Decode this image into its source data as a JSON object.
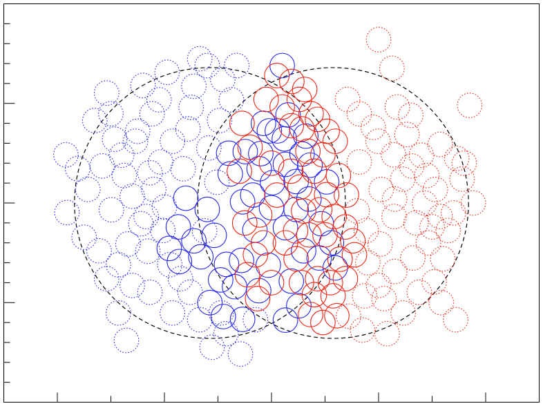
{
  "chart_data": {
    "type": "scatter",
    "title": "",
    "xlabel": "",
    "ylabel": "",
    "xlim": [
      0,
      100
    ],
    "ylim": [
      0,
      100
    ],
    "grid": false,
    "legend": "none",
    "marker": "open-circle",
    "marker_radius": 2.3,
    "x_ticks_major": [
      10,
      30,
      50,
      70,
      90
    ],
    "x_ticks_minor": [
      0,
      20,
      40,
      60,
      80,
      100
    ],
    "y_ticks_major": [
      25,
      50,
      75
    ],
    "y_ticks_minor": [
      0,
      5,
      10,
      15,
      20,
      30,
      35,
      40,
      45,
      55,
      60,
      65,
      70,
      80,
      85,
      90,
      95
    ],
    "regions": [
      {
        "shape": "circle",
        "cx": 38.5,
        "cy": 50,
        "r": 25.3,
        "color": "#000000",
        "style": "dashed"
      },
      {
        "shape": "circle",
        "cx": 61.5,
        "cy": 50,
        "r": 25.3,
        "color": "#000000",
        "style": "dashed"
      }
    ],
    "series": [
      {
        "color": "#2222ee",
        "style": "dotted",
        "points": [
          [
            11.6,
            62.1
          ],
          [
            13.8,
            58.6
          ],
          [
            11.8,
            47.6
          ],
          [
            15.7,
            53.4
          ],
          [
            18.4,
            59.3
          ],
          [
            20.7,
            66.0
          ],
          [
            19.2,
            77.6
          ],
          [
            17.0,
            70.7
          ],
          [
            20.1,
            48.3
          ],
          [
            22.5,
            56.9
          ],
          [
            24.0,
            51.7
          ],
          [
            25.6,
            44.8
          ],
          [
            23.2,
            39.7
          ],
          [
            21.4,
            34.5
          ],
          [
            19.2,
            31.0
          ],
          [
            24.6,
            65.5
          ],
          [
            27.7,
            72.4
          ],
          [
            29.3,
            60.3
          ],
          [
            28.0,
            53.4
          ],
          [
            26.6,
            46.6
          ],
          [
            26.9,
            37.9
          ],
          [
            24.0,
            29.3
          ],
          [
            21.4,
            22.4
          ],
          [
            22.9,
            15.5
          ],
          [
            27.3,
            27.6
          ],
          [
            29.0,
            75.9
          ],
          [
            30.5,
            82.8
          ],
          [
            31.5,
            65.5
          ],
          [
            34.4,
            68.6
          ],
          [
            35.5,
            79.3
          ],
          [
            38.0,
            84.5
          ],
          [
            36.6,
            86.2
          ],
          [
            40.9,
            81.0
          ],
          [
            43.5,
            84.5
          ],
          [
            42.5,
            75.9
          ],
          [
            40.3,
            70.7
          ],
          [
            38.3,
            63.8
          ],
          [
            39.8,
            55.2
          ],
          [
            34.8,
            27.6
          ],
          [
            31.5,
            22.4
          ],
          [
            33.0,
            31.0
          ],
          [
            36.6,
            20.7
          ],
          [
            38.9,
            13.8
          ],
          [
            40.6,
            22.4
          ],
          [
            44.2,
            12.1
          ],
          [
            47.0,
            20.7
          ],
          [
            41.5,
            17.2
          ],
          [
            29.7,
            43.1
          ],
          [
            27.3,
            57.6
          ],
          [
            20.0,
            72.4
          ],
          [
            15.0,
            41.4
          ],
          [
            17.8,
            38.0
          ],
          [
            31.0,
            34.5
          ],
          [
            33.5,
            58.6
          ],
          [
            30.0,
            49.0
          ],
          [
            25.0,
            68.0
          ],
          [
            35.0,
            74.0
          ],
          [
            37.5,
            43.0
          ],
          [
            22.0,
            62.0
          ],
          [
            26.0,
            79.5
          ]
        ]
      },
      {
        "color": "#2222ee",
        "style": "solid",
        "points": [
          [
            34.0,
            51.2
          ],
          [
            32.6,
            44.0
          ],
          [
            30.9,
            38.6
          ],
          [
            32.8,
            35.3
          ],
          [
            35.5,
            40.5
          ],
          [
            38.0,
            48.4
          ],
          [
            39.3,
            41.9
          ],
          [
            41.6,
            34.6
          ],
          [
            44.4,
            35.6
          ],
          [
            40.5,
            30.7
          ],
          [
            43.1,
            29.0
          ],
          [
            41.0,
            21.5
          ],
          [
            44.6,
            20.8
          ],
          [
            47.6,
            28.0
          ],
          [
            49.4,
            34.4
          ],
          [
            46.9,
            43.2
          ],
          [
            44.6,
            50.3
          ],
          [
            42.3,
            57.3
          ],
          [
            45.1,
            62.9
          ],
          [
            47.7,
            58.6
          ],
          [
            50.2,
            55.1
          ],
          [
            52.6,
            59.7
          ],
          [
            54.6,
            55.4
          ],
          [
            55.7,
            62.3
          ],
          [
            52.4,
            66.1
          ],
          [
            49.6,
            68.1
          ],
          [
            48.0,
            62.4
          ],
          [
            50.0,
            48.8
          ],
          [
            52.6,
            43.8
          ],
          [
            54.6,
            48.4
          ],
          [
            57.0,
            51.0
          ],
          [
            59.3,
            44.8
          ],
          [
            61.2,
            40.0
          ],
          [
            60.3,
            55.3
          ],
          [
            57.2,
            59.5
          ],
          [
            56.4,
            66.8
          ],
          [
            53.1,
            72.1
          ],
          [
            51.1,
            68.1
          ],
          [
            53.7,
            30.4
          ],
          [
            55.1,
            24.2
          ],
          [
            52.6,
            20.6
          ],
          [
            58.9,
            36.2
          ],
          [
            61.9,
            33.7
          ],
          [
            52.0,
            84.5
          ],
          [
            48.5,
            70.0
          ],
          [
            46.5,
            52.0
          ],
          [
            38.5,
            25.0
          ],
          [
            36.8,
            36.5
          ],
          [
            56.0,
            38.0
          ],
          [
            42.0,
            62.5
          ]
        ]
      },
      {
        "color": "#ee2211",
        "style": "solid",
        "points": [
          [
            52.0,
            74.1
          ],
          [
            53.7,
            69.4
          ],
          [
            55.7,
            68.6
          ],
          [
            57.4,
            72.4
          ],
          [
            55.2,
            76.0
          ],
          [
            59.6,
            62.1
          ],
          [
            61.9,
            65.5
          ],
          [
            62.5,
            56.9
          ],
          [
            60.3,
            52.1
          ],
          [
            59.0,
            48.3
          ],
          [
            61.7,
            46.6
          ],
          [
            63.8,
            44.0
          ],
          [
            65.2,
            40.5
          ],
          [
            62.8,
            35.9
          ],
          [
            63.8,
            31.0
          ],
          [
            61.5,
            26.7
          ],
          [
            62.2,
            21.7
          ],
          [
            59.6,
            20.0
          ],
          [
            57.3,
            22.0
          ],
          [
            58.0,
            27.0
          ],
          [
            55.6,
            30.0
          ],
          [
            54.6,
            36.0
          ],
          [
            57.0,
            42.0
          ],
          [
            56.0,
            48.0
          ],
          [
            58.0,
            58.0
          ],
          [
            53.6,
            58.0
          ],
          [
            50.0,
            60.0
          ],
          [
            51.0,
            52.0
          ],
          [
            47.8,
            47.0
          ],
          [
            48.5,
            40.0
          ],
          [
            50.0,
            30.0
          ],
          [
            47.4,
            26.0
          ],
          [
            45.5,
            32.0
          ],
          [
            47.0,
            37.0
          ],
          [
            45.0,
            45.0
          ],
          [
            44.0,
            58.0
          ],
          [
            46.0,
            64.0
          ],
          [
            44.5,
            70.0
          ],
          [
            49.0,
            76.0
          ],
          [
            51.0,
            82.0
          ],
          [
            53.8,
            80.5
          ],
          [
            56.2,
            78.5
          ],
          [
            58.6,
            71.0
          ],
          [
            60.4,
            68.0
          ],
          [
            64.0,
            52.0
          ],
          [
            65.5,
            37.0
          ],
          [
            61.0,
            30.0
          ],
          [
            60.0,
            42.0
          ],
          [
            52.6,
            40.0
          ],
          [
            54.5,
            43.0
          ],
          [
            55.3,
            54.0
          ],
          [
            56.8,
            63.0
          ],
          [
            58.6,
            31.0
          ]
        ]
      },
      {
        "color": "#ee2211",
        "style": "dotted",
        "points": [
          [
            70.0,
            91.0
          ],
          [
            72.5,
            83.8
          ],
          [
            87.0,
            74.5
          ],
          [
            73.5,
            74.1
          ],
          [
            66.4,
            72.4
          ],
          [
            69.0,
            69.0
          ],
          [
            72.8,
            62.1
          ],
          [
            76.2,
            59.3
          ],
          [
            79.0,
            56.9
          ],
          [
            80.6,
            53.4
          ],
          [
            78.6,
            50.0
          ],
          [
            81.5,
            46.6
          ],
          [
            83.0,
            43.1
          ],
          [
            79.3,
            40.0
          ],
          [
            76.4,
            36.2
          ],
          [
            73.0,
            32.8
          ],
          [
            70.0,
            29.3
          ],
          [
            67.4,
            26.7
          ],
          [
            64.4,
            21.6
          ],
          [
            67.0,
            18.1
          ],
          [
            71.6,
            17.2
          ],
          [
            74.6,
            22.4
          ],
          [
            77.6,
            27.6
          ],
          [
            80.4,
            30.2
          ],
          [
            81.7,
            25.0
          ],
          [
            84.4,
            20.7
          ],
          [
            87.7,
            50.0
          ],
          [
            84.6,
            61.2
          ],
          [
            85.6,
            56.0
          ],
          [
            81.5,
            64.7
          ],
          [
            75.3,
            67.2
          ],
          [
            69.9,
            65.5
          ],
          [
            66.4,
            60.3
          ],
          [
            70.5,
            53.4
          ],
          [
            72.9,
            46.6
          ],
          [
            67.7,
            43.1
          ],
          [
            70.3,
            39.7
          ],
          [
            73.0,
            51.0
          ],
          [
            77.0,
            45.0
          ],
          [
            74.5,
            56.0
          ],
          [
            78.0,
            62.0
          ],
          [
            82.0,
            36.0
          ],
          [
            68.0,
            35.0
          ],
          [
            64.2,
            76.0
          ],
          [
            76.0,
            72.0
          ],
          [
            80.0,
            44.0
          ],
          [
            84.0,
            47.5
          ],
          [
            86.0,
            60.0
          ],
          [
            71.0,
            26.0
          ],
          [
            66.0,
            48.0
          ]
        ]
      }
    ]
  }
}
